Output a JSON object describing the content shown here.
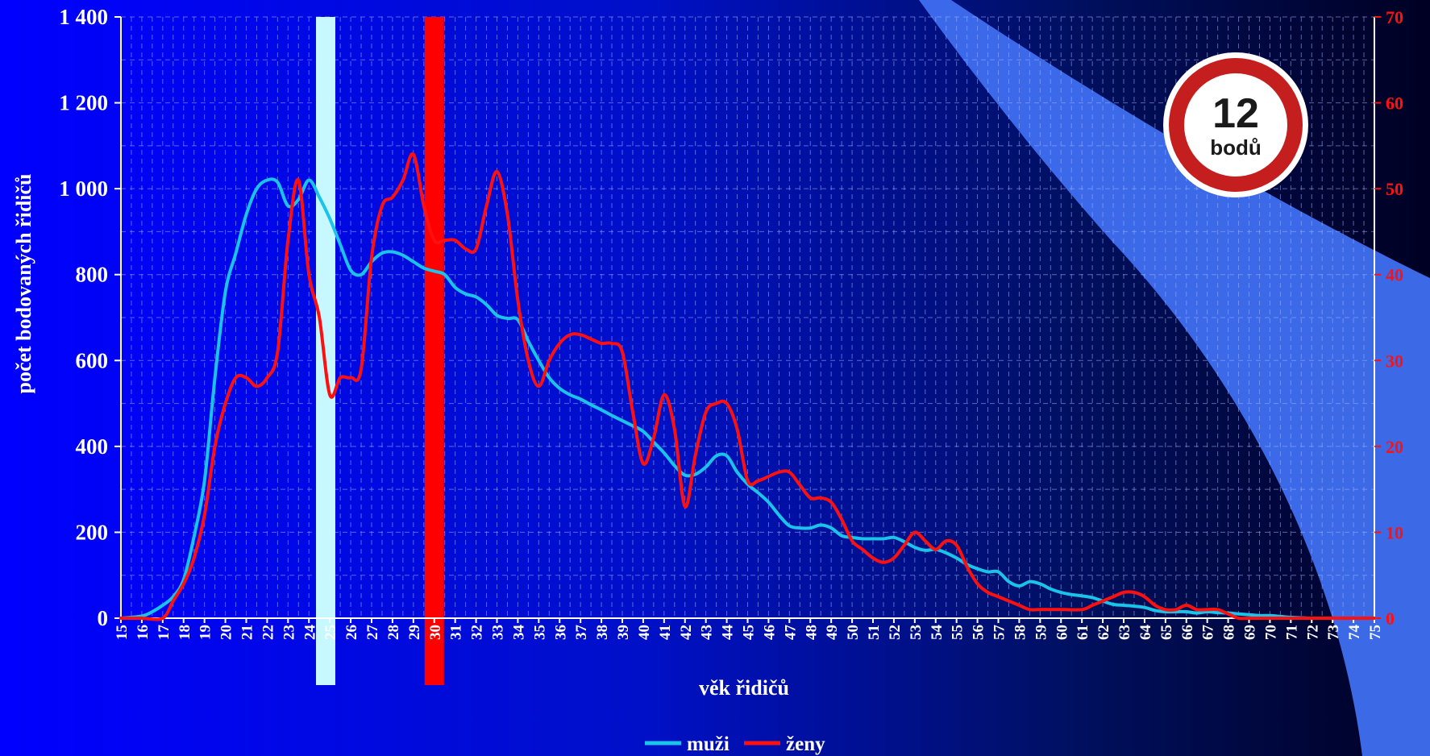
{
  "chart_data": {
    "type": "line",
    "xlabel": "věk řidičů",
    "ylabel": "počet bodovaných řidičů",
    "ylim": [
      0,
      1400
    ],
    "y2lim": [
      0,
      70
    ],
    "yticks": [
      "0",
      "200",
      "400",
      "600",
      "800",
      "1 000",
      "1 200",
      "1 400"
    ],
    "y2ticks": [
      "0",
      "10",
      "20",
      "30",
      "40",
      "50",
      "60",
      "70"
    ],
    "x_range": [
      15,
      75
    ],
    "categories": [
      "15",
      "16",
      "17",
      "18",
      "19",
      "20",
      "21",
      "22",
      "23",
      "24",
      "25",
      "26",
      "27",
      "28",
      "29",
      "30",
      "31",
      "32",
      "33",
      "34",
      "35",
      "36",
      "37",
      "38",
      "39",
      "40",
      "41",
      "42",
      "43",
      "44",
      "45",
      "46",
      "47",
      "48",
      "49",
      "50",
      "51",
      "52",
      "53",
      "54",
      "55",
      "56",
      "57",
      "58",
      "59",
      "60",
      "61",
      "62",
      "63",
      "64",
      "65",
      "66",
      "67",
      "68",
      "69",
      "70",
      "71",
      "72",
      "73",
      "74",
      "75"
    ],
    "grid": true,
    "legend_position": "bottom",
    "series": [
      {
        "name": "muži",
        "axis": "left",
        "color": "#19c3ea",
        "points": [
          [
            15,
            0
          ],
          [
            16,
            5
          ],
          [
            16.5,
            15
          ],
          [
            17,
            30
          ],
          [
            17.5,
            50
          ],
          [
            18,
            90
          ],
          [
            18.5,
            190
          ],
          [
            19,
            320
          ],
          [
            19.5,
            560
          ],
          [
            20,
            760
          ],
          [
            20.5,
            850
          ],
          [
            21,
            940
          ],
          [
            21.5,
            1000
          ],
          [
            22,
            1020
          ],
          [
            22.5,
            1015
          ],
          [
            23,
            960
          ],
          [
            23.5,
            975
          ],
          [
            24,
            1020
          ],
          [
            24.5,
            980
          ],
          [
            25,
            930
          ],
          [
            25.5,
            870
          ],
          [
            26,
            810
          ],
          [
            26.5,
            800
          ],
          [
            27,
            830
          ],
          [
            27.5,
            850
          ],
          [
            28,
            853
          ],
          [
            28.5,
            845
          ],
          [
            29,
            830
          ],
          [
            29.5,
            815
          ],
          [
            30,
            808
          ],
          [
            30.5,
            800
          ],
          [
            31,
            770
          ],
          [
            31.5,
            755
          ],
          [
            32,
            748
          ],
          [
            32.5,
            730
          ],
          [
            33,
            705
          ],
          [
            33.5,
            698
          ],
          [
            34,
            695
          ],
          [
            34.5,
            645
          ],
          [
            35,
            600
          ],
          [
            35.5,
            560
          ],
          [
            36,
            535
          ],
          [
            36.5,
            520
          ],
          [
            37,
            510
          ],
          [
            37.5,
            497
          ],
          [
            38,
            485
          ],
          [
            38.5,
            472
          ],
          [
            39,
            460
          ],
          [
            39.5,
            448
          ],
          [
            40,
            435
          ],
          [
            40.5,
            410
          ],
          [
            41,
            385
          ],
          [
            41.5,
            355
          ],
          [
            42,
            333
          ],
          [
            42.5,
            335
          ],
          [
            43,
            352
          ],
          [
            43.5,
            378
          ],
          [
            44,
            378
          ],
          [
            44.5,
            340
          ],
          [
            45,
            312
          ],
          [
            45.5,
            292
          ],
          [
            46,
            270
          ],
          [
            46.5,
            240
          ],
          [
            47,
            215
          ],
          [
            47.5,
            210
          ],
          [
            48,
            210
          ],
          [
            48.5,
            217
          ],
          [
            49,
            210
          ],
          [
            49.5,
            192
          ],
          [
            50,
            188
          ],
          [
            50.5,
            185
          ],
          [
            51,
            185
          ],
          [
            51.5,
            185
          ],
          [
            52,
            188
          ],
          [
            52.5,
            178
          ],
          [
            53,
            165
          ],
          [
            53.5,
            158
          ],
          [
            54,
            160
          ],
          [
            54.5,
            152
          ],
          [
            55,
            140
          ],
          [
            55.5,
            125
          ],
          [
            56,
            115
          ],
          [
            56.5,
            108
          ],
          [
            57,
            108
          ],
          [
            57.5,
            85
          ],
          [
            58,
            75
          ],
          [
            58.5,
            85
          ],
          [
            59,
            80
          ],
          [
            59.5,
            68
          ],
          [
            60,
            60
          ],
          [
            60.5,
            55
          ],
          [
            61,
            52
          ],
          [
            61.5,
            48
          ],
          [
            62,
            40
          ],
          [
            62.5,
            32
          ],
          [
            63,
            30
          ],
          [
            63.5,
            28
          ],
          [
            64,
            25
          ],
          [
            64.5,
            18
          ],
          [
            65,
            15
          ],
          [
            65.5,
            15
          ],
          [
            66,
            15
          ],
          [
            66.5,
            12
          ],
          [
            67,
            15
          ],
          [
            67.5,
            13
          ],
          [
            68,
            12
          ],
          [
            68.5,
            10
          ],
          [
            69,
            8
          ],
          [
            69.5,
            6
          ],
          [
            70,
            6
          ],
          [
            70.5,
            4
          ],
          [
            71,
            2
          ],
          [
            71.5,
            1
          ],
          [
            72,
            0
          ],
          [
            73,
            0
          ],
          [
            74,
            0
          ],
          [
            75,
            0
          ]
        ]
      },
      {
        "name": "ženy",
        "axis": "right",
        "color": "#ff1010",
        "points": [
          [
            15,
            0
          ],
          [
            16,
            0
          ],
          [
            17,
            0
          ],
          [
            17.5,
            2
          ],
          [
            18,
            4
          ],
          [
            18.5,
            7
          ],
          [
            19,
            12
          ],
          [
            19.5,
            20
          ],
          [
            20,
            25
          ],
          [
            20.5,
            28
          ],
          [
            21,
            28
          ],
          [
            21.5,
            27
          ],
          [
            22,
            28
          ],
          [
            22.5,
            31
          ],
          [
            23,
            44
          ],
          [
            23.5,
            51
          ],
          [
            24,
            40
          ],
          [
            24.5,
            35
          ],
          [
            25,
            26
          ],
          [
            25.5,
            28
          ],
          [
            26,
            28
          ],
          [
            26.5,
            29
          ],
          [
            27,
            42
          ],
          [
            27.5,
            48
          ],
          [
            28,
            49
          ],
          [
            28.5,
            51
          ],
          [
            29,
            54
          ],
          [
            29.5,
            48
          ],
          [
            30,
            44
          ],
          [
            30.5,
            44
          ],
          [
            31,
            44
          ],
          [
            31.5,
            43
          ],
          [
            32,
            43
          ],
          [
            32.5,
            48
          ],
          [
            33,
            52
          ],
          [
            33.5,
            47
          ],
          [
            34,
            37
          ],
          [
            34.5,
            30
          ],
          [
            35,
            27
          ],
          [
            35.5,
            30
          ],
          [
            36,
            32
          ],
          [
            36.5,
            33
          ],
          [
            37,
            33
          ],
          [
            37.5,
            32.5
          ],
          [
            38,
            32
          ],
          [
            38.5,
            32
          ],
          [
            39,
            31
          ],
          [
            39.5,
            24
          ],
          [
            40,
            18
          ],
          [
            40.5,
            21
          ],
          [
            41,
            26
          ],
          [
            41.5,
            22
          ],
          [
            42,
            13
          ],
          [
            42.5,
            19
          ],
          [
            43,
            24
          ],
          [
            43.5,
            25
          ],
          [
            44,
            25
          ],
          [
            44.5,
            22
          ],
          [
            45,
            16
          ],
          [
            45.5,
            16
          ],
          [
            46,
            16.5
          ],
          [
            46.5,
            17
          ],
          [
            47,
            17
          ],
          [
            47.5,
            15.5
          ],
          [
            48,
            14
          ],
          [
            48.5,
            14
          ],
          [
            49,
            13.5
          ],
          [
            49.5,
            11.5
          ],
          [
            50,
            9
          ],
          [
            50.5,
            8
          ],
          [
            51,
            7
          ],
          [
            51.5,
            6.5
          ],
          [
            52,
            7
          ],
          [
            52.5,
            8.5
          ],
          [
            53,
            10
          ],
          [
            53.5,
            9
          ],
          [
            54,
            8
          ],
          [
            54.5,
            9
          ],
          [
            55,
            8.5
          ],
          [
            55.5,
            6
          ],
          [
            56,
            4
          ],
          [
            56.5,
            3
          ],
          [
            57,
            2.5
          ],
          [
            57.5,
            2
          ],
          [
            58,
            1.5
          ],
          [
            58.5,
            1
          ],
          [
            59,
            1
          ],
          [
            60,
            1
          ],
          [
            61,
            1
          ],
          [
            61.5,
            1.5
          ],
          [
            62,
            2
          ],
          [
            62.5,
            2.5
          ],
          [
            63,
            3
          ],
          [
            63.5,
            3
          ],
          [
            64,
            2.5
          ],
          [
            64.5,
            1.5
          ],
          [
            65,
            1
          ],
          [
            65.5,
            1
          ],
          [
            66,
            1.5
          ],
          [
            66.5,
            1
          ],
          [
            67,
            1
          ],
          [
            67.5,
            1
          ],
          [
            68,
            0.5
          ],
          [
            68.5,
            0
          ],
          [
            69,
            0
          ],
          [
            70,
            0
          ],
          [
            72,
            0
          ],
          [
            74,
            0
          ],
          [
            75,
            0
          ]
        ]
      }
    ],
    "highlights": [
      {
        "x": 24.8,
        "color": "#c8f8ff",
        "axis_note": ""
      },
      {
        "x": 30,
        "color": "#ff0000",
        "axis_note": ""
      }
    ]
  },
  "badge": {
    "number": "12",
    "label": "bodů"
  },
  "legend": [
    {
      "label": "muži",
      "color": "#19c3ea"
    },
    {
      "label": "ženy",
      "color": "#ff1010"
    }
  ],
  "colors": {
    "background_left": "#0000ff",
    "background_right": "#000022",
    "curve_band": "#3f6ff0"
  }
}
